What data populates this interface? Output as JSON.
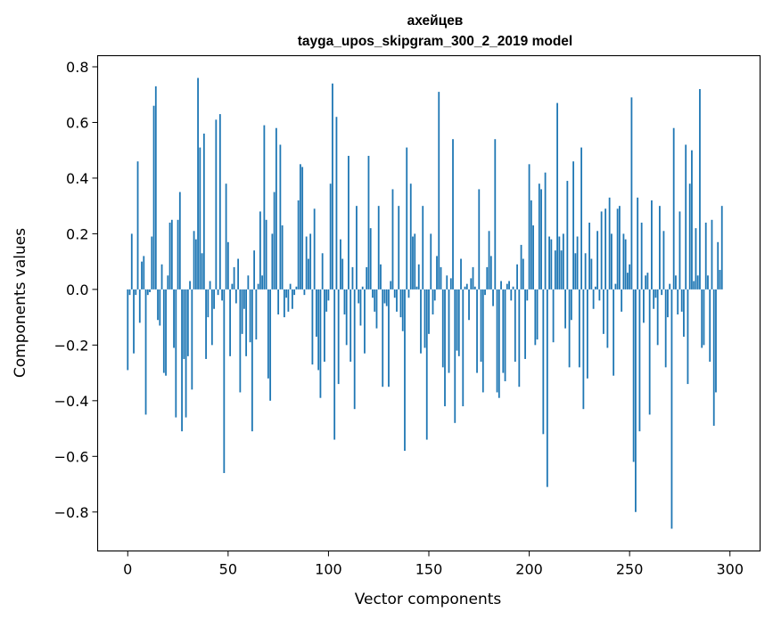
{
  "chart_data": {
    "type": "bar",
    "title": "ахейцев",
    "subtitle": "tayga_upos_skipgram_300_2_2019 model",
    "xlabel": "Vector components",
    "ylabel": "Components values",
    "xlim": [
      -15,
      315
    ],
    "ylim": [
      -0.94,
      0.84
    ],
    "xticks": [
      0,
      50,
      100,
      150,
      200,
      250,
      300
    ],
    "yticks": [
      -0.8,
      -0.6,
      -0.4,
      -0.2,
      0.0,
      0.2,
      0.4,
      0.6,
      0.8
    ],
    "xtick_labels": [
      "0",
      "50",
      "100",
      "150",
      "200",
      "250",
      "300"
    ],
    "ytick_labels": [
      "−0.8",
      "−0.6",
      "−0.4",
      "−0.2",
      "0.0",
      "0.2",
      "0.4",
      "0.6",
      "0.8"
    ],
    "grid": false,
    "bar_color": "#1f77b4",
    "values": [
      -0.29,
      -0.02,
      0.2,
      -0.23,
      -0.02,
      0.46,
      -0.12,
      0.1,
      0.12,
      -0.45,
      -0.02,
      -0.01,
      0.19,
      0.66,
      0.73,
      -0.11,
      -0.13,
      0.09,
      -0.3,
      -0.31,
      0.05,
      0.24,
      0.25,
      -0.21,
      -0.46,
      0.25,
      0.35,
      -0.51,
      -0.25,
      -0.46,
      -0.24,
      0.03,
      -0.36,
      0.21,
      0.18,
      0.76,
      0.51,
      0.13,
      0.56,
      -0.25,
      -0.1,
      0.03,
      -0.2,
      -0.07,
      0.61,
      -0.02,
      0.63,
      -0.04,
      -0.66,
      0.38,
      0.17,
      -0.24,
      0.02,
      0.08,
      -0.05,
      0.11,
      -0.37,
      -0.16,
      -0.07,
      -0.24,
      0.05,
      -0.19,
      -0.51,
      0.14,
      -0.18,
      0.02,
      0.28,
      0.05,
      0.59,
      0.25,
      -0.32,
      -0.4,
      0.2,
      0.35,
      0.58,
      -0.09,
      0.52,
      0.23,
      -0.1,
      -0.03,
      -0.08,
      0.02,
      -0.07,
      -0.02,
      0.01,
      0.32,
      0.45,
      0.44,
      -0.02,
      0.19,
      0.11,
      0.2,
      -0.27,
      0.29,
      -0.17,
      -0.29,
      -0.39,
      0.13,
      -0.26,
      -0.08,
      -0.04,
      0.38,
      0.74,
      -0.54,
      0.62,
      -0.34,
      0.18,
      0.11,
      -0.09,
      -0.2,
      0.48,
      -0.26,
      0.08,
      -0.43,
      0.3,
      -0.05,
      -0.13,
      0.01,
      -0.23,
      0.08,
      0.48,
      0.22,
      -0.03,
      -0.08,
      -0.14,
      0.3,
      0.09,
      -0.35,
      -0.05,
      -0.06,
      -0.35,
      0.03,
      0.36,
      -0.03,
      -0.08,
      0.3,
      -0.1,
      -0.15,
      -0.58,
      0.51,
      -0.03,
      0.38,
      0.19,
      0.2,
      0.01,
      0.09,
      -0.23,
      0.3,
      -0.21,
      -0.54,
      -0.16,
      0.2,
      -0.09,
      -0.04,
      0.12,
      0.71,
      0.08,
      -0.28,
      -0.42,
      0.05,
      -0.3,
      0.04,
      0.54,
      -0.48,
      -0.22,
      -0.24,
      0.11,
      -0.42,
      0.01,
      0.02,
      -0.11,
      0.04,
      0.08,
      0.01,
      -0.3,
      0.36,
      -0.26,
      -0.37,
      -0.02,
      0.08,
      0.21,
      0.12,
      -0.06,
      0.54,
      -0.37,
      -0.39,
      0.03,
      -0.3,
      -0.33,
      0.02,
      0.03,
      -0.04,
      0.01,
      -0.26,
      0.09,
      -0.35,
      0.16,
      0.11,
      -0.25,
      -0.04,
      0.45,
      0.32,
      0.23,
      -0.2,
      -0.18,
      0.38,
      0.36,
      -0.52,
      0.42,
      -0.71,
      0.19,
      0.18,
      -0.19,
      0.14,
      0.67,
      0.19,
      0.14,
      0.2,
      -0.14,
      0.39,
      -0.28,
      -0.11,
      0.46,
      0.13,
      0.19,
      -0.28,
      0.51,
      -0.43,
      0.13,
      -0.32,
      0.24,
      0.11,
      -0.07,
      0.01,
      0.21,
      -0.04,
      0.28,
      -0.16,
      0.29,
      -0.21,
      0.33,
      0.2,
      -0.31,
      0.02,
      0.29,
      0.3,
      -0.08,
      0.2,
      0.18,
      0.06,
      0.09,
      0.69,
      -0.62,
      -0.8,
      0.33,
      -0.51,
      0.24,
      -0.12,
      0.05,
      0.06,
      -0.45,
      0.32,
      -0.07,
      -0.03,
      -0.2,
      0.3,
      -0.02,
      0.21,
      -0.28,
      -0.1,
      0.02,
      -0.86,
      0.58,
      0.05,
      -0.09,
      0.28,
      -0.08,
      -0.17,
      0.52,
      -0.34,
      0.38,
      0.5,
      0.03,
      0.22,
      0.05,
      0.72,
      -0.21,
      -0.2,
      0.24,
      0.05,
      -0.26,
      0.25,
      -0.49,
      -0.37,
      0.17,
      0.07,
      0.3
    ]
  }
}
